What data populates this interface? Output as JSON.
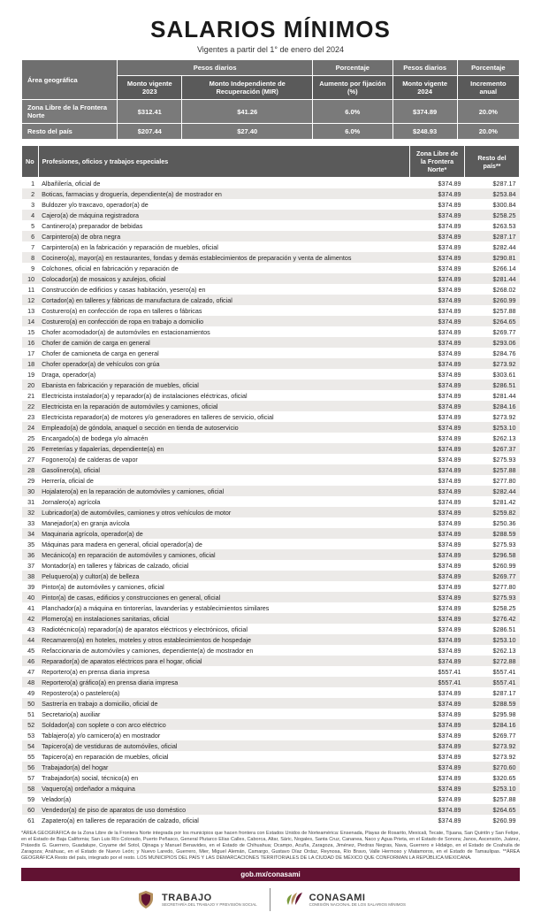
{
  "header": {
    "title": "SALARIOS MÍNIMOS",
    "subtitle": "Vigentes a partir del 1° de enero del 2024"
  },
  "top_table": {
    "group_headers": [
      "Pesos diarios",
      "Porcentaje",
      "Pesos diarios",
      "Porcentaje"
    ],
    "column_headers": [
      "Área geográfica",
      "Monto vigente 2023",
      "Monto Independiente de Recuperación (MIR)",
      "Aumento por fijación (%)",
      "Monto vigente 2024",
      "Incremento anual"
    ],
    "rows": [
      {
        "area": "Zona Libre de la Frontera Norte",
        "v2023": "$312.41",
        "mir": "$41.26",
        "pct": "6.0%",
        "v2024": "$374.89",
        "inc": "20.0%"
      },
      {
        "area": "Resto del país",
        "v2023": "$207.44",
        "mir": "$27.40",
        "pct": "6.0%",
        "v2024": "$248.93",
        "inc": "20.0%"
      }
    ]
  },
  "main_table": {
    "headers": {
      "no": "No",
      "prof": "Profesiones, oficios y trabajos especiales",
      "zona": "Zona Libre de la Frontera Norte*",
      "resto": "Resto del país**"
    },
    "rows": [
      {
        "n": 1,
        "p": "Albañilería, oficial de",
        "a": "$374.89",
        "b": "$287.17"
      },
      {
        "n": 2,
        "p": "Boticas, farmacias y droguería, dependiente(a) de mostrador en",
        "a": "$374.89",
        "b": "$253.84"
      },
      {
        "n": 3,
        "p": "Buldozer y/o traxcavo, operador(a) de",
        "a": "$374.89",
        "b": "$300.84"
      },
      {
        "n": 4,
        "p": "Cajero(a) de máquina registradora",
        "a": "$374.89",
        "b": "$258.25"
      },
      {
        "n": 5,
        "p": "Cantinero(a) preparador de bebidas",
        "a": "$374.89",
        "b": "$263.53"
      },
      {
        "n": 6,
        "p": "Carpintero(a) de obra negra",
        "a": "$374.89",
        "b": "$287.17"
      },
      {
        "n": 7,
        "p": "Carpintero(a) en la fabricación y reparación de muebles, oficial",
        "a": "$374.89",
        "b": "$282.44"
      },
      {
        "n": 8,
        "p": "Cocinero(a), mayor(a) en restaurantes, fondas y demás establecimientos de preparación y venta de alimentos",
        "a": "$374.89",
        "b": "$290.81"
      },
      {
        "n": 9,
        "p": "Colchones, oficial en fabricación y reparación de",
        "a": "$374.89",
        "b": "$266.14"
      },
      {
        "n": 10,
        "p": "Colocador(a) de mosaicos y azulejos, oficial",
        "a": "$374.89",
        "b": "$281.44"
      },
      {
        "n": 11,
        "p": "Construcción de edificios y casas habitación, yesero(a) en",
        "a": "$374.89",
        "b": "$268.02"
      },
      {
        "n": 12,
        "p": "Cortador(a) en talleres y fábricas de manufactura de calzado, oficial",
        "a": "$374.89",
        "b": "$260.99"
      },
      {
        "n": 13,
        "p": "Costurero(a) en confección de ropa en talleres o fábricas",
        "a": "$374.89",
        "b": "$257.88"
      },
      {
        "n": 14,
        "p": "Costurero(a) en confección de ropa en trabajo a domicilio",
        "a": "$374.89",
        "b": "$264.65"
      },
      {
        "n": 15,
        "p": "Chofer acomodador(a) de automóviles en estacionamientos",
        "a": "$374.89",
        "b": "$269.77"
      },
      {
        "n": 16,
        "p": "Chofer de camión de carga en general",
        "a": "$374.89",
        "b": "$293.06"
      },
      {
        "n": 17,
        "p": "Chofer de camioneta de carga en general",
        "a": "$374.89",
        "b": "$284.76"
      },
      {
        "n": 18,
        "p": "Chofer operador(a) de vehículos con grúa",
        "a": "$374.89",
        "b": "$273.92"
      },
      {
        "n": 19,
        "p": "Draga, operador(a)",
        "a": "$374.89",
        "b": "$303.61"
      },
      {
        "n": 20,
        "p": "Ebanista en fabricación y reparación de muebles, oficial",
        "a": "$374.89",
        "b": "$286.51"
      },
      {
        "n": 21,
        "p": "Electricista instalador(a) y reparador(a) de instalaciones eléctricas, oficial",
        "a": "$374.89",
        "b": "$281.44"
      },
      {
        "n": 22,
        "p": "Electricista en la reparación de automóviles y camiones, oficial",
        "a": "$374.89",
        "b": "$284.16"
      },
      {
        "n": 23,
        "p": "Electricista reparador(a) de motores y/o generadores en talleres de servicio, oficial",
        "a": "$374.89",
        "b": "$273.92"
      },
      {
        "n": 24,
        "p": "Empleado(a) de góndola, anaquel o sección en tienda de autoservicio",
        "a": "$374.89",
        "b": "$253.10"
      },
      {
        "n": 25,
        "p": "Encargado(a) de bodega y/o almacén",
        "a": "$374.89",
        "b": "$262.13"
      },
      {
        "n": 26,
        "p": "Ferreterías y tlapalerías, dependiente(a) en",
        "a": "$374.89",
        "b": "$267.37"
      },
      {
        "n": 27,
        "p": "Fogonero(a) de calderas de vapor",
        "a": "$374.89",
        "b": "$275.93"
      },
      {
        "n": 28,
        "p": "Gasolinero(a), oficial",
        "a": "$374.89",
        "b": "$257.88"
      },
      {
        "n": 29,
        "p": "Herrería, oficial de",
        "a": "$374.89",
        "b": "$277.80"
      },
      {
        "n": 30,
        "p": "Hojalatero(a) en la reparación de automóviles y camiones, oficial",
        "a": "$374.89",
        "b": "$282.44"
      },
      {
        "n": 31,
        "p": "Jornalero(a) agrícola",
        "a": "$374.89",
        "b": "$281.42"
      },
      {
        "n": 32,
        "p": "Lubricador(a) de automóviles, camiones y otros vehículos de motor",
        "a": "$374.89",
        "b": "$259.82"
      },
      {
        "n": 33,
        "p": "Manejador(a) en granja avícola",
        "a": "$374.89",
        "b": "$250.36"
      },
      {
        "n": 34,
        "p": "Maquinaria agrícola, operador(a) de",
        "a": "$374.89",
        "b": "$288.59"
      },
      {
        "n": 35,
        "p": "Máquinas para madera en general, oficial operador(a) de",
        "a": "$374.89",
        "b": "$275.93"
      },
      {
        "n": 36,
        "p": "Mecánico(a) en reparación de automóviles y camiones, oficial",
        "a": "$374.89",
        "b": "$296.58"
      },
      {
        "n": 37,
        "p": "Montador(a) en talleres y fábricas de calzado, oficial",
        "a": "$374.89",
        "b": "$260.99"
      },
      {
        "n": 38,
        "p": "Peluquero(a) y cultor(a) de belleza",
        "a": "$374.89",
        "b": "$269.77"
      },
      {
        "n": 39,
        "p": "Pintor(a) de automóviles y camiones, oficial",
        "a": "$374.89",
        "b": "$277.80"
      },
      {
        "n": 40,
        "p": "Pintor(a) de casas, edificios y construcciones en general, oficial",
        "a": "$374.89",
        "b": "$275.93"
      },
      {
        "n": 41,
        "p": "Planchador(a) a máquina en tintorerías, lavanderías y establecimientos similares",
        "a": "$374.89",
        "b": "$258.25"
      },
      {
        "n": 42,
        "p": "Plomero(a) en instalaciones sanitarias, oficial",
        "a": "$374.89",
        "b": "$276.42"
      },
      {
        "n": 43,
        "p": "Radiotécnico(a) reparador(a) de aparatos eléctricos y electrónicos, oficial",
        "a": "$374.89",
        "b": "$286.51"
      },
      {
        "n": 44,
        "p": "Recamarero(a) en hoteles, moteles y otros establecimientos de hospedaje",
        "a": "$374.89",
        "b": "$253.10"
      },
      {
        "n": 45,
        "p": "Refaccionaria de automóviles y camiones, dependiente(a) de mostrador en",
        "a": "$374.89",
        "b": "$262.13"
      },
      {
        "n": 46,
        "p": "Reparador(a) de aparatos eléctricos para el hogar, oficial",
        "a": "$374.89",
        "b": "$272.88"
      },
      {
        "n": 47,
        "p": "Reportero(a) en prensa diaria impresa",
        "a": "$557.41",
        "b": "$557.41"
      },
      {
        "n": 48,
        "p": "Reportero(a) gráfico(a) en prensa diaria impresa",
        "a": "$557.41",
        "b": "$557.41"
      },
      {
        "n": 49,
        "p": "Repostero(a) o pastelero(a)",
        "a": "$374.89",
        "b": "$287.17"
      },
      {
        "n": 50,
        "p": "Sastrería en trabajo a domicilio, oficial de",
        "a": "$374.89",
        "b": "$288.59"
      },
      {
        "n": 51,
        "p": "Secretario(a) auxiliar",
        "a": "$374.89",
        "b": "$295.98"
      },
      {
        "n": 52,
        "p": "Soldador(a) con soplete o con arco eléctrico",
        "a": "$374.89",
        "b": "$284.16"
      },
      {
        "n": 53,
        "p": "Tablajero(a) y/o carnicero(a) en mostrador",
        "a": "$374.89",
        "b": "$269.77"
      },
      {
        "n": 54,
        "p": "Tapicero(a) de vestiduras de automóviles, oficial",
        "a": "$374.89",
        "b": "$273.92"
      },
      {
        "n": 55,
        "p": "Tapicero(a) en reparación de muebles, oficial",
        "a": "$374.89",
        "b": "$273.92"
      },
      {
        "n": 56,
        "p": "Trabajador(a) del hogar",
        "a": "$374.89",
        "b": "$270.60"
      },
      {
        "n": 57,
        "p": "Trabajador(a) social, técnico(a) en",
        "a": "$374.89",
        "b": "$320.65"
      },
      {
        "n": 58,
        "p": "Vaquero(a) ordeñador a máquina",
        "a": "$374.89",
        "b": "$253.10"
      },
      {
        "n": 59,
        "p": "Velador(a)",
        "a": "$374.89",
        "b": "$257.88"
      },
      {
        "n": 60,
        "p": "Vendedor(a) de piso de aparatos de uso doméstico",
        "a": "$374.89",
        "b": "$264.65"
      },
      {
        "n": 61,
        "p": "Zapatero(a) en talleres de reparación de calzado, oficial",
        "a": "$374.89",
        "b": "$260.99"
      }
    ]
  },
  "footnote": "*ÁREA GEOGRÁFICA de la Zona Libre de la Frontera Norte integrada por los municipios que hacen frontera con Estados Unidos de Norteamérica: Ensenada, Playas de Rosarito, Mexicali, Tecate, Tijuana, San Quintín y San Felipe, en el Estado de Baja California; San Luis Río Colorado, Puerto Peñasco, General Plutarco Elías Calles, Caborca, Altar, Sáric, Nogales, Santa Cruz, Cananea, Naco y Agua Prieta, en el Estado de Sonora; Janos, Ascensión, Juárez, Práxedis G. Guerrero, Guadalupe, Coyame del Sotol, Ojinaga y Manuel Benavides, en el Estado de Chihuahua; Ocampo, Acuña, Zaragoza, Jiménez, Piedras Negras, Nava, Guerrero e Hidalgo, en el Estado de Coahuila de Zaragoza; Anáhuac, en el Estado de Nuevo León; y Nuevo Laredo, Guerrero, Mier, Miguel Alemán, Camargo, Gustavo Díaz Ordaz, Reynosa, Río Bravo, Valle Hermoso y Matamoros, en el Estado de Tamaulipas. **ÁREA GEOGRÁFICA Resto del país, integrado por el resto. LOS MUNICIPIOS DEL PAÍS Y LAS DEMARCACIONES TERRITORIALES DE LA CIUDAD DE MÉXICO QUE CONFORMAN LA REPÚBLICA MEXICANA.",
  "gov_bar": "gob.mx/conasami",
  "logos": {
    "trabajo": {
      "main": "TRABAJO",
      "sub": "SECRETARÍA DEL TRABAJO Y PREVISIÓN SOCIAL"
    },
    "conasami": {
      "main": "CONASAMI",
      "sub": "COMISIÓN NACIONAL DE LOS SALARIOS MÍNIMOS"
    }
  },
  "colors": {
    "header_bg": "#5a5a5a",
    "row_even": "#eceae8",
    "gov_bar": "#611232"
  }
}
